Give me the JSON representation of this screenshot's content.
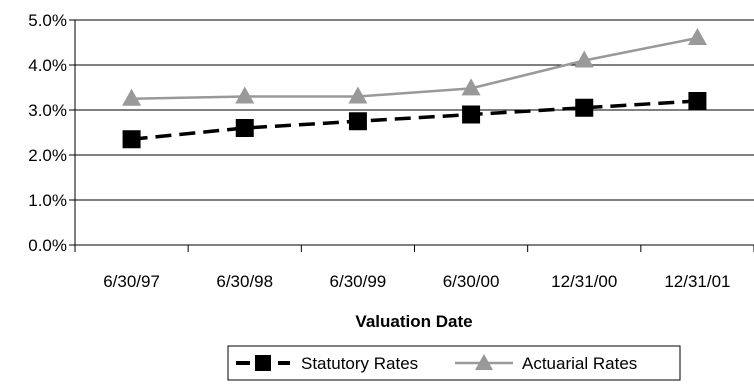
{
  "chart_data": {
    "type": "line",
    "title": "",
    "xlabel": "Valuation Date",
    "ylabel": "",
    "categories": [
      "6/30/97",
      "6/30/98",
      "6/30/99",
      "6/30/00",
      "12/31/00",
      "12/31/01"
    ],
    "yticks": [
      "0.0%",
      "1.0%",
      "2.0%",
      "3.0%",
      "4.0%",
      "5.0%"
    ],
    "ylim": [
      0,
      5
    ],
    "grid": true,
    "legend_position": "bottom",
    "series": [
      {
        "name": "Statutory Rates",
        "values": [
          2.35,
          2.6,
          2.75,
          2.9,
          3.05,
          3.2
        ],
        "color": "#000000",
        "line_style": "dashed",
        "marker": "square"
      },
      {
        "name": "Actuarial Rates",
        "values": [
          3.25,
          3.3,
          3.3,
          3.48,
          4.1,
          4.6
        ],
        "color": "#999999",
        "line_style": "solid",
        "marker": "triangle"
      }
    ]
  }
}
